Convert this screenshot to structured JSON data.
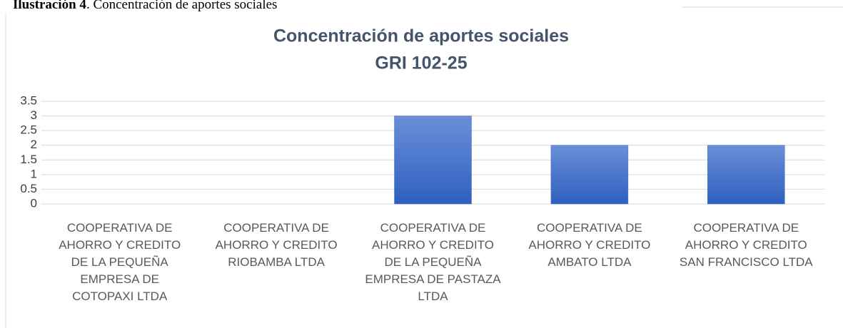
{
  "caption": {
    "label": "Ilustración 4",
    "text": ". Concentración de aportes sociales"
  },
  "chart_data": {
    "type": "bar",
    "title": "Concentración de aportes sociales",
    "subtitle": "GRI 102-25",
    "categories": [
      "COOPERATIVA DE AHORRO Y CREDITO DE LA PEQUEÑA EMPRESA DE COTOPAXI LTDA",
      "COOPERATIVA DE AHORRO Y CREDITO RIOBAMBA LTDA",
      "COOPERATIVA DE AHORRO Y CREDITO DE LA PEQUEÑA EMPRESA DE PASTAZA LTDA",
      "COOPERATIVA DE AHORRO Y CREDITO AMBATO LTDA",
      "COOPERATIVA DE AHORRO Y CREDITO SAN FRANCISCO LTDA"
    ],
    "values": [
      0,
      0,
      3,
      2,
      2
    ],
    "color": "#4472c4",
    "ylim": [
      0,
      3.5
    ],
    "yticks": [
      0,
      0.5,
      1,
      1.5,
      2,
      2.5,
      3,
      3.5
    ],
    "grid": true
  }
}
